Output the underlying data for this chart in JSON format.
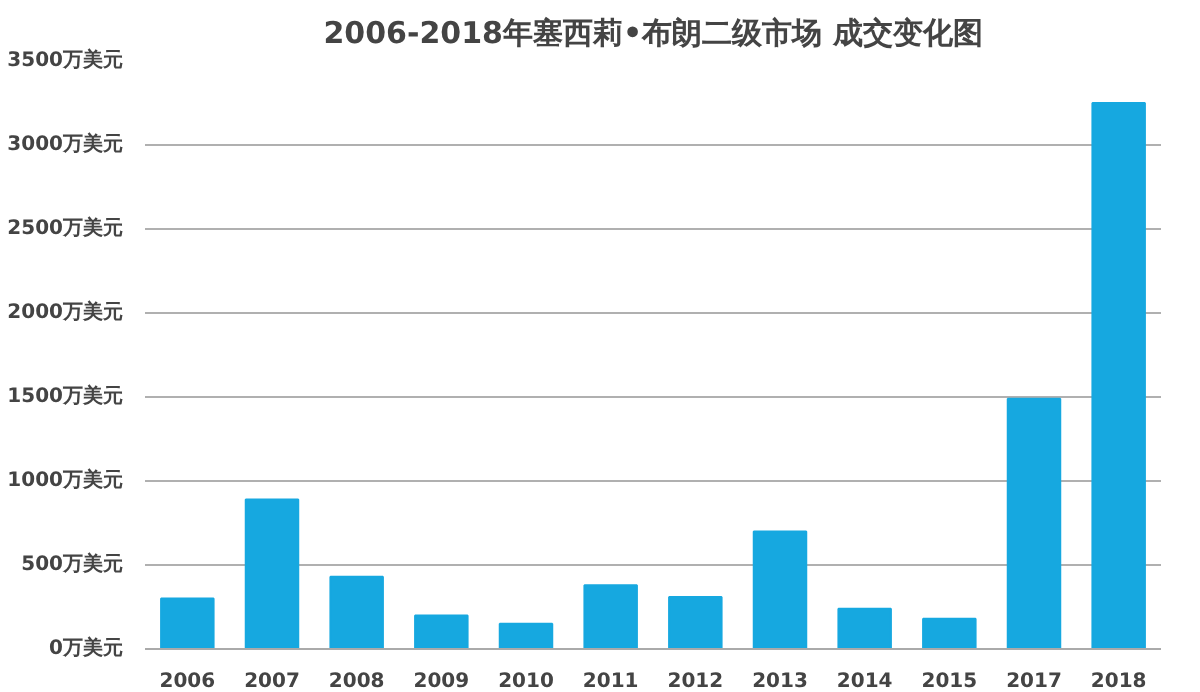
{
  "chart_data": {
    "type": "bar",
    "title": "2006-2018年塞西莉•布朗二级市场 成交变化图",
    "categories": [
      "2006",
      "2007",
      "2008",
      "2009",
      "2010",
      "2011",
      "2012",
      "2013",
      "2014",
      "2015",
      "2017",
      "2018"
    ],
    "values": [
      300,
      890,
      430,
      200,
      150,
      380,
      310,
      700,
      240,
      180,
      1490,
      3250
    ],
    "color": "#16a8e0",
    "ylim": [
      0,
      3500
    ],
    "yticks": [
      {
        "value": 0,
        "label": "0万美元"
      },
      {
        "value": 500,
        "label": "500万美元"
      },
      {
        "value": 1000,
        "label": "1000万美元"
      },
      {
        "value": 1500,
        "label": "1500万美元"
      },
      {
        "value": 2000,
        "label": "2000万美元"
      },
      {
        "value": 2500,
        "label": "2500万美元"
      },
      {
        "value": 3000,
        "label": "3000万美元"
      },
      {
        "value": 3500,
        "label": "3500万美元"
      }
    ],
    "grid": "y"
  }
}
